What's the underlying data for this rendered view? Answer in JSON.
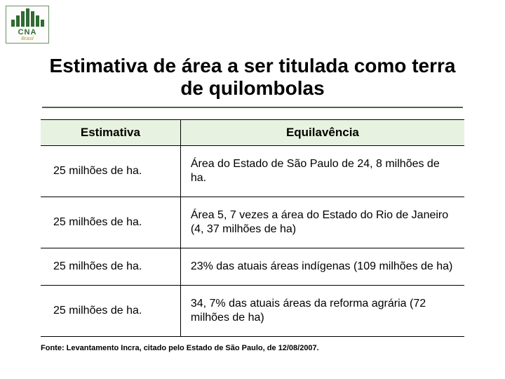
{
  "logo": {
    "abbr": "CNA",
    "sub": "Brasil",
    "bar_color": "#2f6b32",
    "sub_color": "#b89a2e"
  },
  "title": "Estimativa de área a ser titulada como terra de quilombolas",
  "table": {
    "header_bg": "#e8f2e0",
    "columns": [
      "Estimativa",
      "Equilavência"
    ],
    "rows": [
      [
        "25 milhões de ha.",
        "Área do Estado de São Paulo  de 24, 8 milhões de ha."
      ],
      [
        "25 milhões de ha.",
        "Área 5, 7 vezes a área do Estado do Rio de Janeiro (4, 37 milhões de ha)"
      ],
      [
        "25 milhões de ha.",
        "23% das atuais áreas indígenas (109 milhões de ha)"
      ],
      [
        "25 milhões de ha.",
        "34, 7% das atuais áreas da reforma agrária (72 milhões de ha)"
      ]
    ]
  },
  "source": "Fonte: Levantamento Incra, citado pelo Estado de São Paulo, de 12/08/2007."
}
